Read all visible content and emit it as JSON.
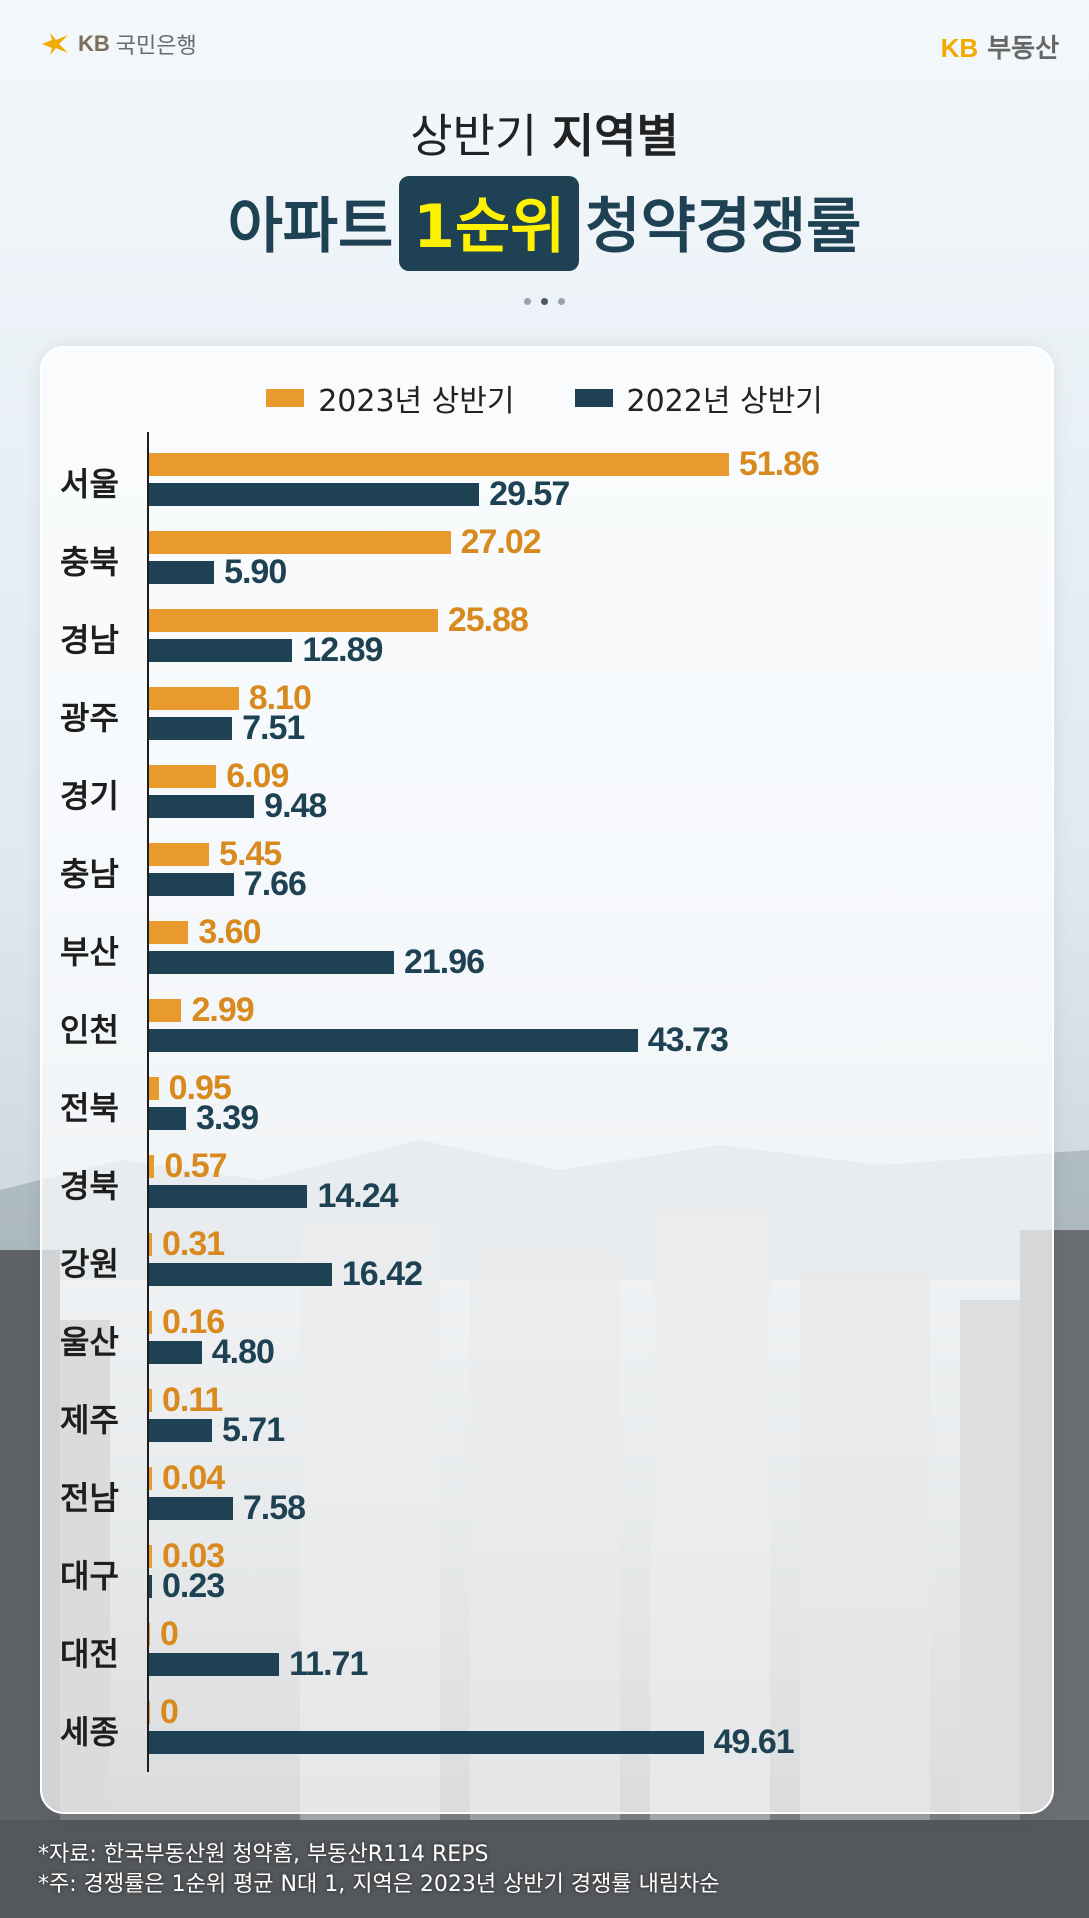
{
  "brand": {
    "bank_kb": "KB",
    "bank_name": "국민은행",
    "realty_kb": "KB",
    "realty_name": "부동산"
  },
  "title": {
    "line1_regular": "상반기",
    "line1_bold": "지역별",
    "line2_pre": "아파트",
    "line2_highlight": "1순위",
    "line2_post": "청약경쟁률"
  },
  "colors": {
    "series_2023": "#E99A2C",
    "series_2022": "#1E4253",
    "label_2023": "#D98A1F",
    "label_2022": "#1E4253",
    "highlight_bg": "#1E4253",
    "highlight_text": "#FFF200"
  },
  "chart_data": {
    "type": "bar",
    "orientation": "horizontal",
    "categories": [
      "서울",
      "충북",
      "경남",
      "광주",
      "경기",
      "충남",
      "부산",
      "인천",
      "전북",
      "경북",
      "강원",
      "울산",
      "제주",
      "전남",
      "대구",
      "대전",
      "세종"
    ],
    "series": [
      {
        "name": "2023년 상반기",
        "values": [
          51.86,
          27.02,
          25.88,
          8.1,
          6.09,
          5.45,
          3.6,
          2.99,
          0.95,
          0.57,
          0.31,
          0.16,
          0.11,
          0.04,
          0.03,
          0,
          0
        ],
        "labels": [
          "51.86",
          "27.02",
          "25.88",
          "8.10",
          "6.09",
          "5.45",
          "3.60",
          "2.99",
          "0.95",
          "0.57",
          "0.31",
          "0.16",
          "0.11",
          "0.04",
          "0.03",
          "0",
          "0"
        ]
      },
      {
        "name": "2022년 상반기",
        "values": [
          29.57,
          5.9,
          12.89,
          7.51,
          9.48,
          7.66,
          21.96,
          43.73,
          3.39,
          14.24,
          16.42,
          4.8,
          5.71,
          7.58,
          0.23,
          11.71,
          49.61
        ],
        "labels": [
          "29.57",
          "5.90",
          "12.89",
          "7.51",
          "9.48",
          "7.66",
          "21.96",
          "43.73",
          "3.39",
          "14.24",
          "16.42",
          "4.80",
          "5.71",
          "7.58",
          "0.23",
          "11.71",
          "49.61"
        ]
      }
    ],
    "xlim": [
      0,
      55
    ],
    "legend_position": "top-center",
    "grid": false
  },
  "footnotes": {
    "source": "*자료: 한국부동산원 청약홈, 부동산R114 REPS",
    "note": "*주: 경쟁률은 1순위 평균 N대 1, 지역은 2023년 상반기 경쟁률 내림차순"
  }
}
